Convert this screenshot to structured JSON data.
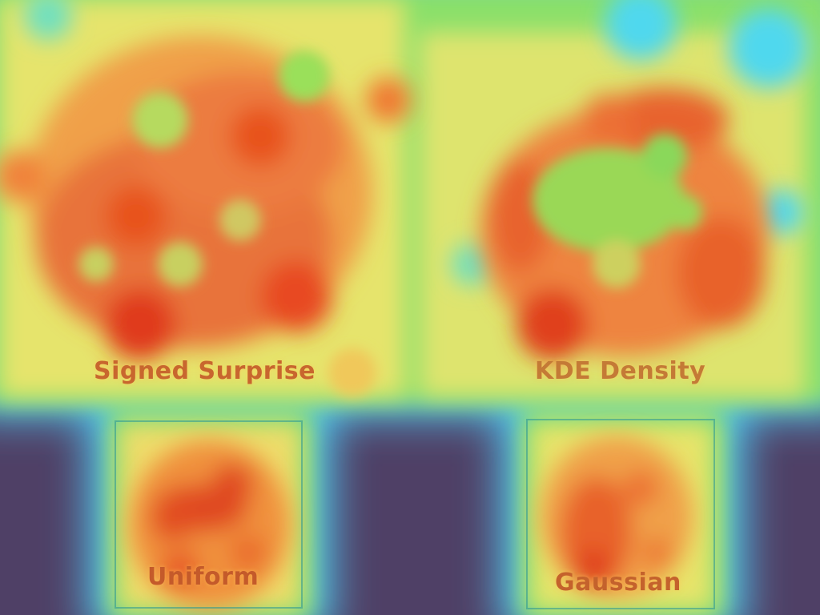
{
  "image": {
    "kind": "saliency heatmap overlay",
    "colors": {
      "low": "#4f4066",
      "blue": "#6f86ff",
      "cyan": "#4fd8ee",
      "green": "#8de05a",
      "yellow": "#e8e46a",
      "orange": "#f09a40",
      "red": "#e04a22",
      "panel_border": "#2a9898",
      "caption": "#c8662e"
    }
  },
  "panels": {
    "signed_surprise": {
      "label": "Signed Surprise"
    },
    "kde_density": {
      "label": "KDE Density"
    },
    "uniform": {
      "label": "Uniform"
    },
    "gaussian": {
      "label": "Gaussian"
    }
  }
}
